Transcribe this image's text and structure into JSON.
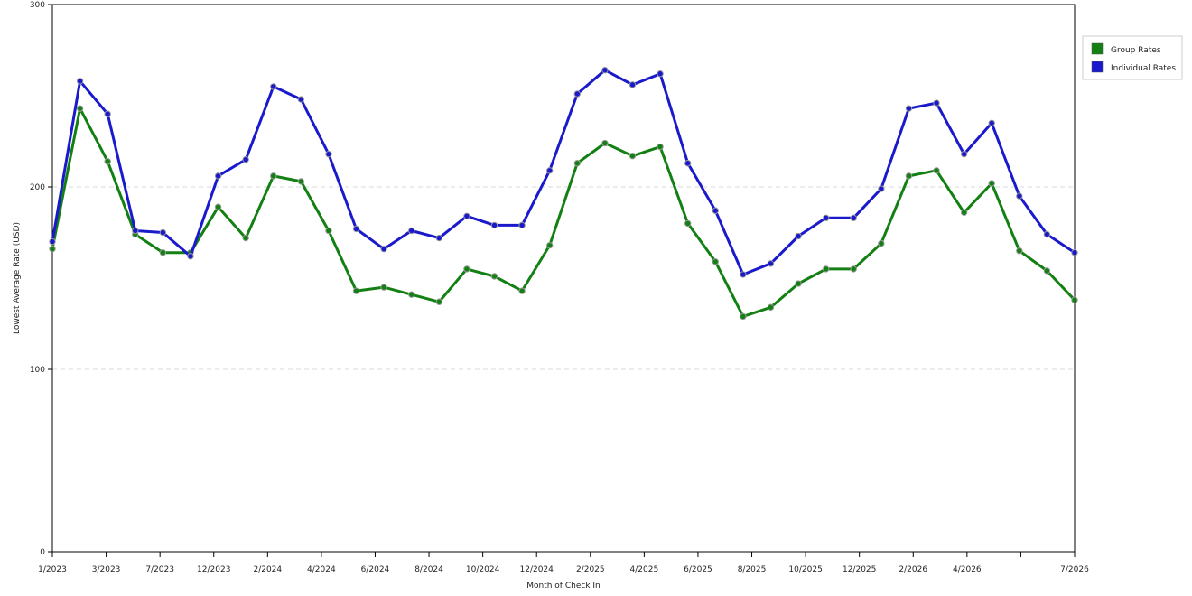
{
  "chart_data": {
    "type": "line",
    "title": "",
    "xlabel": "Month of Check In",
    "ylabel": "Lowest Average Rate (USD)",
    "ylim": [
      0,
      300
    ],
    "yticks": [
      0,
      100,
      200,
      300
    ],
    "grid": "horizontal dashed at 100 and 200",
    "legend_position": "right",
    "x_tick_labels": [
      "1/2023",
      "3/2023",
      "7/2023",
      "12/2023",
      "2/2024",
      "4/2024",
      "6/2024",
      "8/2024",
      "10/2024",
      "12/2024",
      "2/2025",
      "4/2025",
      "6/2025",
      "8/2025",
      "10/2025",
      "12/2025",
      "2/2026",
      "4/2026",
      "",
      "7/2026"
    ],
    "series": [
      {
        "name": "Group Rates",
        "color": "#138013",
        "values": [
          166,
          243,
          214,
          174,
          164,
          164,
          189,
          172,
          206,
          203,
          176,
          143,
          145,
          141,
          137,
          155,
          151,
          143,
          168,
          213,
          224,
          217,
          222,
          180,
          159,
          129,
          134,
          147,
          155,
          155,
          169,
          206,
          209,
          186,
          202,
          165,
          154,
          138
        ]
      },
      {
        "name": "Individual Rates",
        "color": "#1a1acc",
        "values": [
          170,
          258,
          240,
          176,
          175,
          162,
          206,
          215,
          255,
          248,
          218,
          177,
          166,
          176,
          172,
          184,
          179,
          179,
          209,
          251,
          264,
          256,
          262,
          213,
          187,
          152,
          158,
          173,
          183,
          183,
          199,
          243,
          246,
          218,
          235,
          195,
          174,
          164
        ]
      }
    ]
  }
}
